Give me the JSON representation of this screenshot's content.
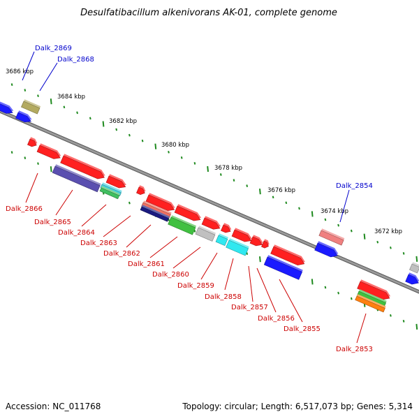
{
  "title": "Desulfatibacillum alkenivorans AK-01, complete genome",
  "footer": {
    "accession": "Accession: NC_011768",
    "summary": "Topology: circular; Length: 6,517,073 bp; Genes: 5,314"
  },
  "colors": {
    "backbone": "#808080",
    "ticks": "#1f8a1f",
    "label_forward": "#0000cc",
    "label_reverse": "#cc0000"
  },
  "position_labels": [
    "3686 kbp",
    "3684 kbp",
    "3682 kbp",
    "3680 kbp",
    "3678 kbp",
    "3676 kbp",
    "3674 kbp",
    "3672 kbp"
  ],
  "gene_labels_forward": [
    "Dalk_2869",
    "Dalk_2868",
    "Dalk_2854"
  ],
  "gene_labels_reverse": [
    "Dalk_2866",
    "Dalk_2865",
    "Dalk_2864",
    "Dalk_2863",
    "Dalk_2862",
    "Dalk_2861",
    "Dalk_2860",
    "Dalk_2859",
    "Dalk_2858",
    "Dalk_2857",
    "Dalk_2856",
    "Dalk_2855",
    "Dalk_2853"
  ]
}
